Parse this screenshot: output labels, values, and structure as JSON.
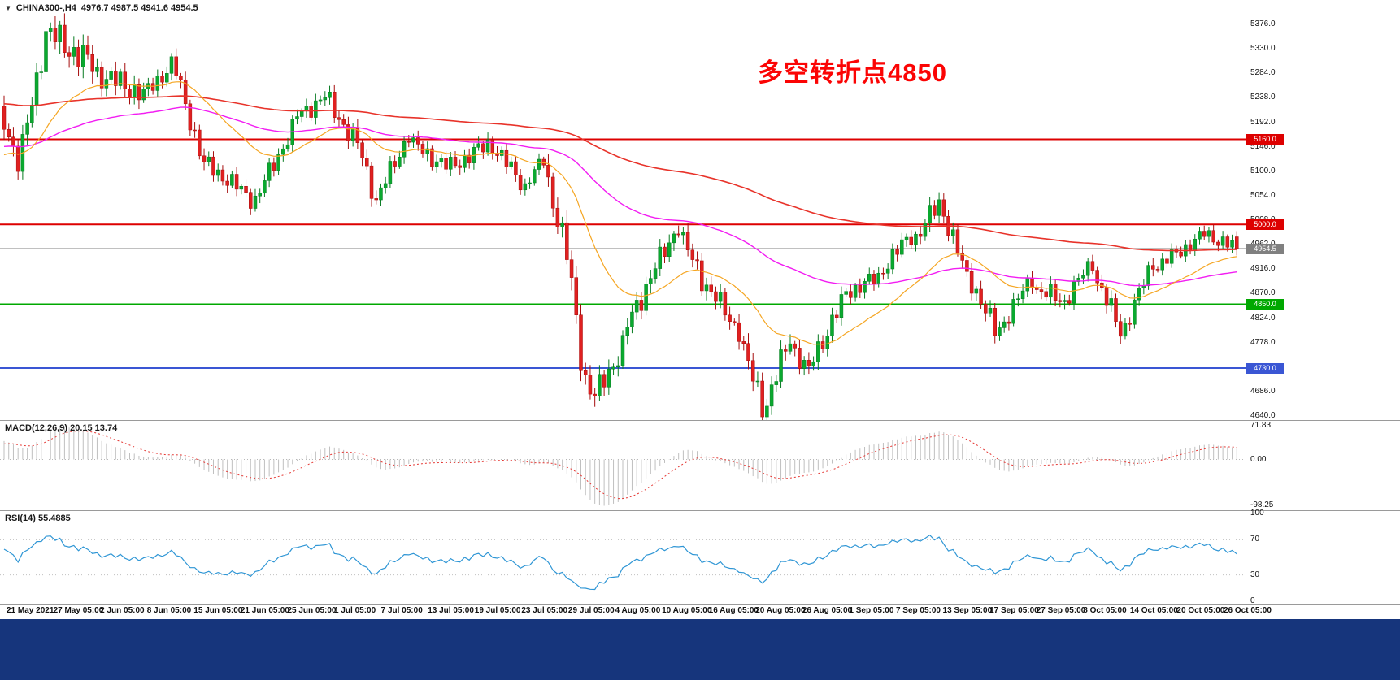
{
  "app": {
    "title_symbol": "CHINA300-,H4",
    "title_values": "4976.7 4987.5 4941.6 4954.5"
  },
  "annotation": {
    "text": "多空转折点4850",
    "color": "#fb0404"
  },
  "colors": {
    "background": "#ffffff",
    "up_candle": "#0aa92f",
    "up_candle_border": "#067a20",
    "down_candle": "#e02020",
    "down_candle_border": "#a50d0d",
    "macd_histogram": "#bfbfbf",
    "macd_signal": "#e53935",
    "rsi_line": "#2f96d5",
    "separator": "#9a9a9a",
    "taskbar": "#16357c",
    "axis_text": "#111111"
  },
  "price_axis": {
    "labels": [
      "5376.0",
      "5330.0",
      "5284.0",
      "5238.0",
      "5192.0",
      "5146.0",
      "5100.0",
      "5054.0",
      "5008.0",
      "4962.0",
      "4916.0",
      "4870.0",
      "4824.0",
      "4778.0",
      "4732.0",
      "4686.0",
      "4640.0"
    ],
    "range": {
      "min": 4640,
      "max": 5376,
      "step": 46
    }
  },
  "time_axis": {
    "labels": [
      "21 May 2021",
      "27 May 05:00",
      "2 Jun 05:00",
      "8 Jun 05:00",
      "15 Jun 05:00",
      "21 Jun 05:00",
      "25 Jun 05:00",
      "1 Jul 05:00",
      "7 Jul 05:00",
      "13 Jul 05:00",
      "19 Jul 05:00",
      "23 Jul 05:00",
      "29 Jul 05:00",
      "4 Aug 05:00",
      "10 Aug 05:00",
      "16 Aug 05:00",
      "20 Aug 05:00",
      "26 Aug 05:00",
      "1 Sep 05:00",
      "7 Sep 05:00",
      "13 Sep 05:00",
      "17 Sep 05:00",
      "27 Sep 05:00",
      "8 Oct 05:00",
      "14 Oct 05:00",
      "20 Oct 05:00",
      "26 Oct 05:00"
    ]
  },
  "levels": [
    {
      "name": "resistance-5160",
      "value": 5160.0,
      "label": "5160.0",
      "color": "#dd0000",
      "width": 2
    },
    {
      "name": "resistance-5000",
      "value": 5000.0,
      "label": "5000.0",
      "color": "#dd0000",
      "width": 2
    },
    {
      "name": "support-4850",
      "value": 4850.0,
      "label": "4850.0",
      "color": "#00a800",
      "width": 2
    },
    {
      "name": "support-4730",
      "value": 4730.0,
      "label": "4730.0",
      "color": "#3a56d4",
      "width": 2
    },
    {
      "name": "current-price",
      "value": 4954.5,
      "label": "4954.5",
      "color": "#808080",
      "width": 1
    }
  ],
  "chart_data": {
    "type": "candlestick",
    "symbol": "CHINA300-,H4",
    "timeframe": "H4",
    "x_range": [
      "21 May 2021",
      "26 Oct 05:00"
    ],
    "ylim": [
      4640,
      5376
    ],
    "last_candle": {
      "open": 4976.7,
      "high": 4987.5,
      "low": 4941.6,
      "close": 4954.5
    },
    "warmup_bars": 120,
    "start": 5400,
    "warmup_segments": [
      [
        25,
        5320,
        35
      ],
      [
        35,
        5150,
        40
      ],
      [
        30,
        5000,
        35
      ],
      [
        30,
        5200,
        35
      ]
    ],
    "segments": [
      [
        4,
        5120,
        45
      ],
      [
        6,
        5360,
        45
      ],
      [
        10,
        5300,
        50
      ],
      [
        10,
        5250,
        40
      ],
      [
        7,
        5300,
        30
      ],
      [
        7,
        5110,
        35
      ],
      [
        10,
        5050,
        30
      ],
      [
        9,
        5180,
        30
      ],
      [
        7,
        5240,
        30
      ],
      [
        7,
        5150,
        35
      ],
      [
        4,
        5045,
        35
      ],
      [
        7,
        5170,
        30
      ],
      [
        8,
        5110,
        30
      ],
      [
        9,
        5150,
        30
      ],
      [
        8,
        5070,
        30
      ],
      [
        4,
        5120,
        25
      ],
      [
        4,
        4980,
        45
      ],
      [
        4,
        4760,
        55
      ],
      [
        3,
        4675,
        45
      ],
      [
        6,
        4770,
        40
      ],
      [
        7,
        4920,
        40
      ],
      [
        5,
        5000,
        35
      ],
      [
        7,
        4870,
        40
      ],
      [
        6,
        4800,
        35
      ],
      [
        5,
        4665,
        45
      ],
      [
        6,
        4790,
        40
      ],
      [
        4,
        4720,
        35
      ],
      [
        7,
        4850,
        35
      ],
      [
        8,
        4900,
        28
      ],
      [
        7,
        4980,
        30
      ],
      [
        6,
        5040,
        35
      ],
      [
        6,
        4900,
        35
      ],
      [
        6,
        4800,
        35
      ],
      [
        8,
        4900,
        30
      ],
      [
        7,
        4855,
        32
      ],
      [
        6,
        4930,
        28
      ],
      [
        6,
        4800,
        35
      ],
      [
        7,
        4930,
        30
      ],
      [
        10,
        4975,
        25
      ],
      [
        8,
        4955,
        25
      ]
    ],
    "moving_averages": [
      {
        "name": "ma-slow",
        "period": 200,
        "color": "#e8332a",
        "width": 1.6
      },
      {
        "name": "ma-mid",
        "period": 89,
        "color": "#f21df2",
        "width": 1.4
      },
      {
        "name": "ma-fast",
        "period": 26,
        "color": "#f5a623",
        "width": 1.2
      }
    ],
    "macd": {
      "label": "MACD(12,26,9) 20.15 13.74",
      "fast": 12,
      "slow": 26,
      "signal": 9,
      "value": 20.15,
      "signal_value": 13.74,
      "scale": [
        {
          "text": "71.83",
          "v": 71.83
        },
        {
          "text": "0.00",
          "v": 0
        },
        {
          "text": "-98.25",
          "v": -98.25
        }
      ]
    },
    "rsi": {
      "label": "RSI(14) 55.4885",
      "period": 14,
      "value": 55.4885,
      "scale": [
        {
          "text": "100",
          "v": 100
        },
        {
          "text": "70",
          "v": 70
        },
        {
          "text": "30",
          "v": 30
        },
        {
          "text": "0",
          "v": 0
        }
      ],
      "guides": [
        70,
        30
      ]
    }
  }
}
